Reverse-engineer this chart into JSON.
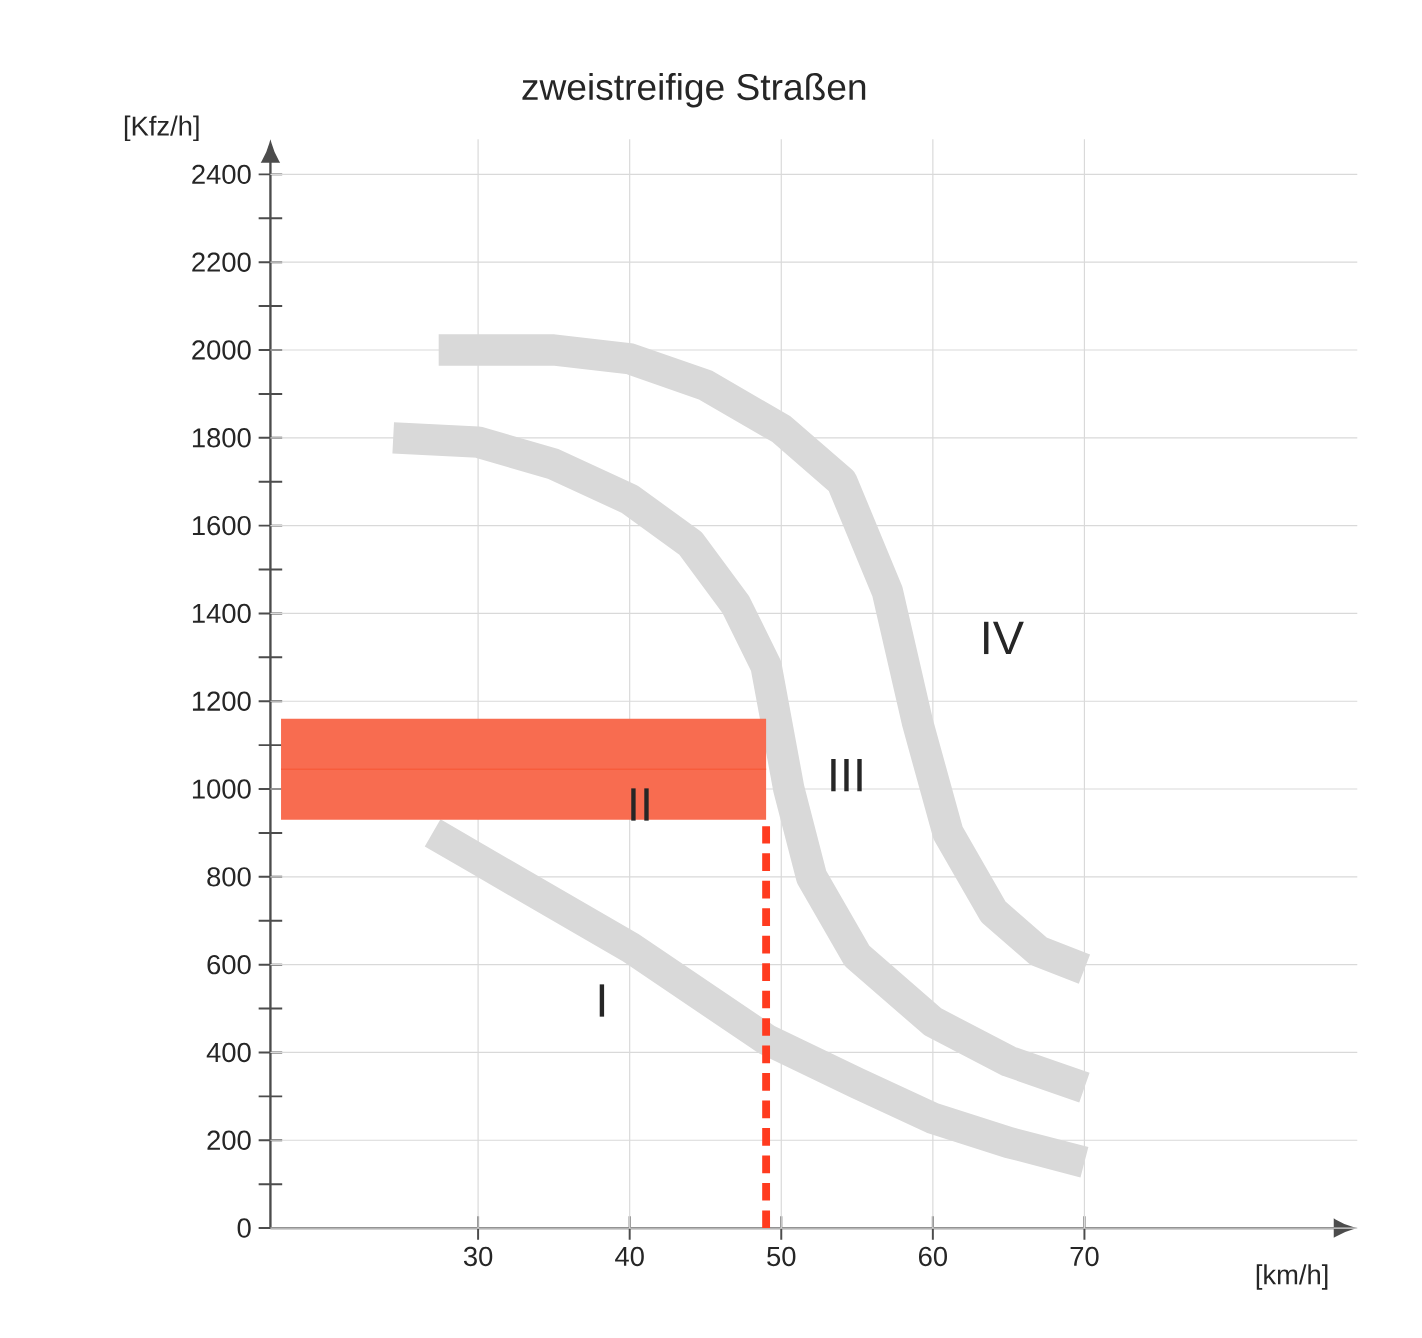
{
  "chart_data": {
    "type": "line",
    "title": "zweistreifige Straßen",
    "xlabel": "[km/h]",
    "ylabel": "[Kfz/h]",
    "xlim": [
      16.3,
      88
    ],
    "ylim": [
      0,
      2480
    ],
    "xticks": [
      30,
      40,
      50,
      60,
      70
    ],
    "yticks": [
      0,
      {
        "value": 100,
        "label": null
      },
      200,
      {
        "value": 300,
        "label": null
      },
      400,
      {
        "value": 500,
        "label": null
      },
      600,
      {
        "value": 700,
        "label": null
      },
      800,
      {
        "value": 900,
        "label": null
      },
      1000,
      {
        "value": 1100,
        "label": null
      },
      1200,
      {
        "value": 1300,
        "label": null
      },
      1400,
      {
        "value": 1500,
        "label": null
      },
      1600,
      {
        "value": 1700,
        "label": null
      },
      1800,
      {
        "value": 1900,
        "label": null
      },
      2000,
      {
        "value": 2100,
        "label": null
      },
      2200,
      {
        "value": 2300,
        "label": null
      },
      2400
    ],
    "grid": true,
    "marker": "none",
    "series": [
      {
        "color": "#d9d9d9",
        "x": [
          27.4,
          35,
          40,
          45,
          50,
          54,
          57,
          59,
          61,
          64,
          67,
          70
        ],
        "values": [
          2000,
          2000,
          1980,
          1920,
          1820,
          1700,
          1450,
          1150,
          900,
          720,
          630,
          590
        ]
      },
      {
        "color": "#d9d9d9",
        "x": [
          24.4,
          30,
          35,
          40,
          44,
          47,
          49,
          50.5,
          52,
          55,
          60,
          65,
          70
        ],
        "values": [
          1800,
          1790,
          1740,
          1660,
          1560,
          1420,
          1280,
          1000,
          800,
          620,
          470,
          380,
          320
        ]
      },
      {
        "color": "#d9d9d9",
        "x": [
          27,
          30,
          40,
          49,
          55,
          60,
          65,
          70
        ],
        "values": [
          900,
          840,
          640,
          430,
          330,
          250,
          195,
          150
        ]
      },
      {
        "color": "#f75c3c",
        "x": [
          17,
          49
        ],
        "values": [
          1045,
          1045
        ],
        "lower": [
          930,
          930
        ],
        "upper": [
          1160,
          1160
        ]
      },
      {
        "color": "#ff3b1f",
        "line_style": "dashed",
        "x": [
          49,
          49
        ],
        "values": [
          0,
          915
        ]
      }
    ],
    "annotations": [
      "I",
      "II",
      "III",
      "IV"
    ]
  }
}
